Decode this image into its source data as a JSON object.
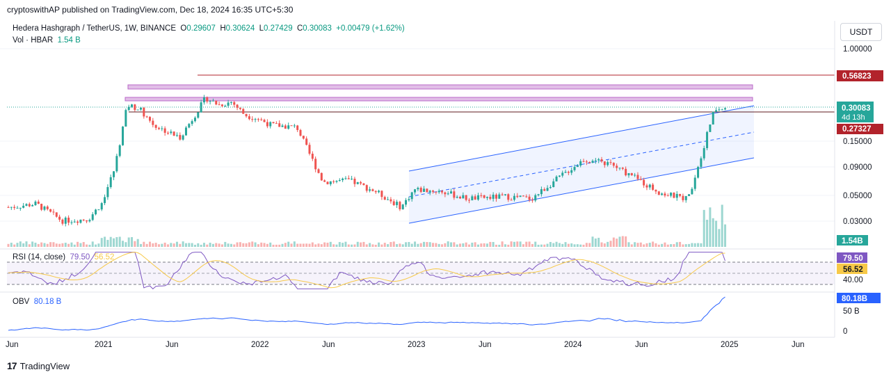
{
  "header": {
    "publisher": "cryptoswithAP published on TradingView.com, Dec 18, 2024 16:35 UTC+5:30"
  },
  "legend": {
    "symbol": "Hedera Hashgraph / TetherUS, 1W, BINANCE",
    "open_label": "O",
    "open": "0.29607",
    "high_label": "H",
    "high": "0.30624",
    "low_label": "L",
    "low": "0.27429",
    "close_label": "C",
    "close": "0.30083",
    "change": "+0.00479 (+1.62%)",
    "vol_label": "Vol · HBAR",
    "vol_value": "1.54 B"
  },
  "currency_button": "USDT",
  "rsi_legend": {
    "label": "RSI (14, close)",
    "value1": "79.50",
    "value2": "56.52"
  },
  "obv_legend": {
    "label": "OBV",
    "value": "80.18 B"
  },
  "footer": {
    "brand": "TradingView",
    "logo": "17"
  },
  "chart_data": {
    "type": "candlestick",
    "symbol": "HBAR/USDT",
    "interval": "1W",
    "y_scale": "log",
    "price_ticks": [
      "1.00000",
      "0.15000",
      "0.09000",
      "0.05000",
      "0.03000"
    ],
    "price_labels": {
      "resistance": "0.56823",
      "current": "0.30083",
      "countdown": "4d 13h",
      "support": "0.27327",
      "volume": "1.54B"
    },
    "x_ticks": [
      "Jun",
      "2021",
      "Jun",
      "2022",
      "Jun",
      "2023",
      "Jun",
      "2024",
      "Jun",
      "2025",
      "Jun"
    ],
    "price_path": [
      [
        "2020-06",
        0.042
      ],
      [
        "2020-08",
        0.045
      ],
      [
        "2020-10",
        0.032
      ],
      [
        "2020-12",
        0.033
      ],
      [
        "2021-01",
        0.045
      ],
      [
        "2021-02",
        0.09
      ],
      [
        "2021-03",
        0.33
      ],
      [
        "2021-04",
        0.3
      ],
      [
        "2021-05",
        0.22
      ],
      [
        "2021-07",
        0.17
      ],
      [
        "2021-08",
        0.25
      ],
      [
        "2021-09",
        0.38
      ],
      [
        "2021-10",
        0.33
      ],
      [
        "2021-11",
        0.35
      ],
      [
        "2021-12",
        0.27
      ],
      [
        "2022-01",
        0.25
      ],
      [
        "2022-02",
        0.22
      ],
      [
        "2022-04",
        0.21
      ],
      [
        "2022-05",
        0.12
      ],
      [
        "2022-06",
        0.07
      ],
      [
        "2022-08",
        0.072
      ],
      [
        "2022-10",
        0.058
      ],
      [
        "2022-12",
        0.042
      ],
      [
        "2023-01",
        0.06
      ],
      [
        "2023-03",
        0.058
      ],
      [
        "2023-05",
        0.05
      ],
      [
        "2023-08",
        0.052
      ],
      [
        "2023-10",
        0.05
      ],
      [
        "2023-12",
        0.075
      ],
      [
        "2024-02",
        0.11
      ],
      [
        "2024-04",
        0.1
      ],
      [
        "2024-06",
        0.075
      ],
      [
        "2024-08",
        0.055
      ],
      [
        "2024-10",
        0.05
      ],
      [
        "2024-11",
        0.12
      ],
      [
        "2024-12",
        0.3
      ]
    ],
    "rsi": {
      "ticks": [
        "40.00"
      ],
      "levels": [
        70,
        50,
        30
      ],
      "value": "79.50",
      "ma_value": "56.52"
    },
    "obv": {
      "ticks": [
        "50 B",
        "0"
      ],
      "value": "80.18B"
    },
    "colors": {
      "up": "#26a69a",
      "down": "#ef5350",
      "channel": "#2962ff",
      "resistance": "#b2232b",
      "zone": "#ce93d8",
      "rsi": "#7e57c2",
      "rsi_ma": "#f7c948",
      "obv": "#2962ff"
    }
  }
}
